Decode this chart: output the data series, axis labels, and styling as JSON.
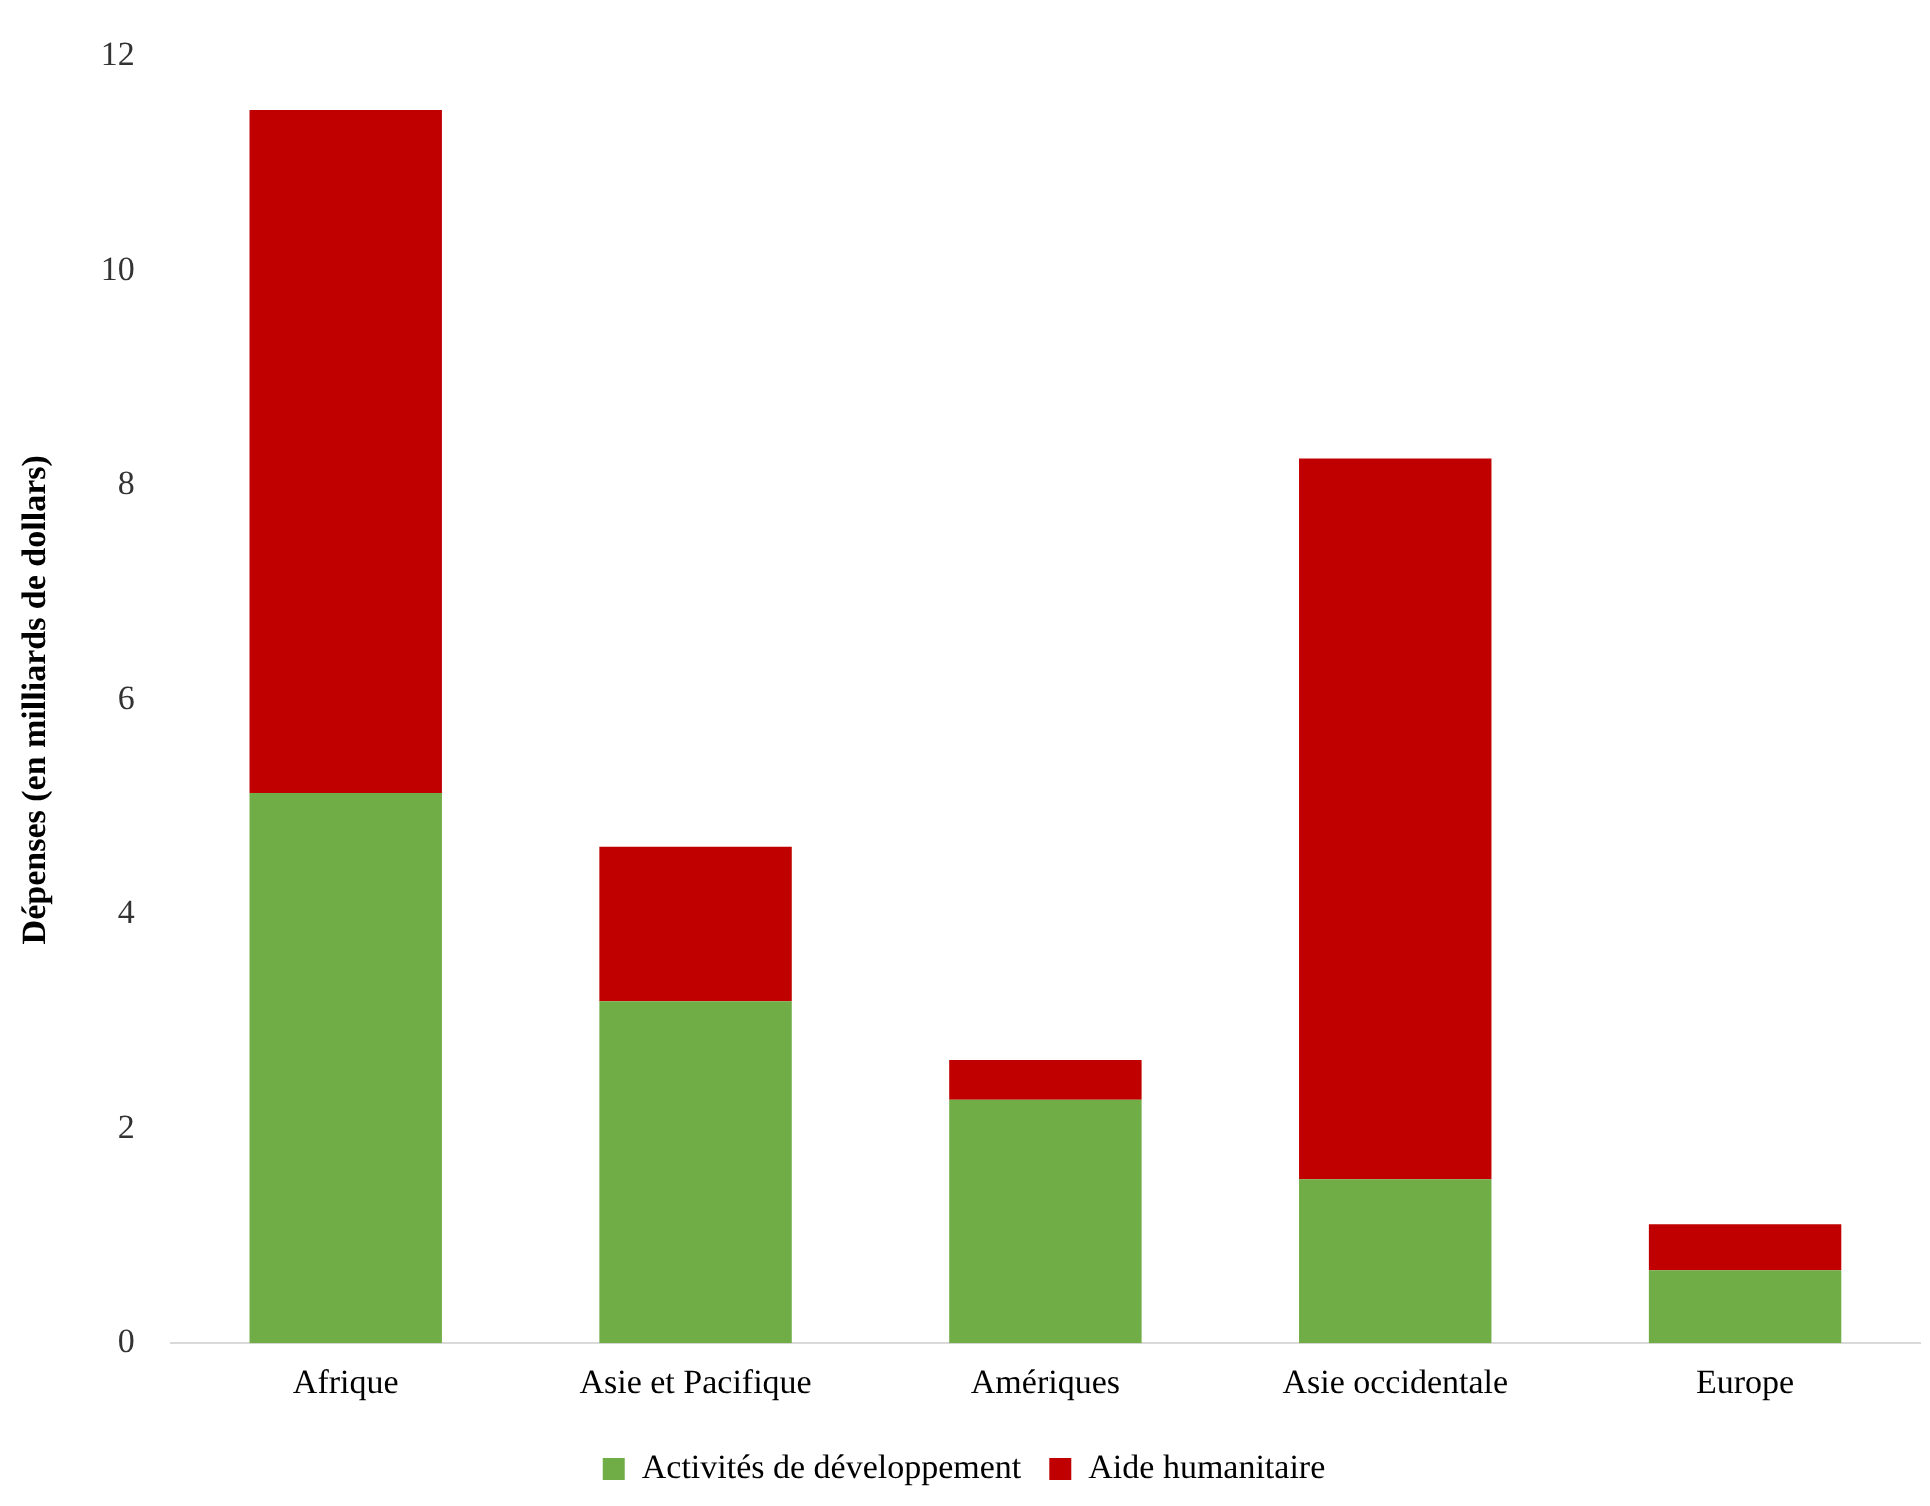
{
  "chart_data": {
    "type": "bar",
    "ylabel": "Dépenses (en milliards de dollars)",
    "categories": [
      "Afrique",
      "Asie et Pacifique",
      "Amériques",
      "Asie occidentale",
      "Europe"
    ],
    "stacked": true,
    "series": [
      {
        "name": "Activités de développement",
        "color": "#70ad47",
        "values": [
          5.13,
          3.19,
          2.27,
          1.53,
          0.68
        ]
      },
      {
        "name": "Aide humanitaire",
        "color": "#c00000",
        "values": [
          6.37,
          1.44,
          0.37,
          6.72,
          0.43
        ]
      }
    ],
    "ylim": [
      0,
      12
    ],
    "yticks": [
      0,
      2,
      4,
      6,
      8,
      10,
      12
    ],
    "grid": false,
    "legend": "bottom"
  }
}
